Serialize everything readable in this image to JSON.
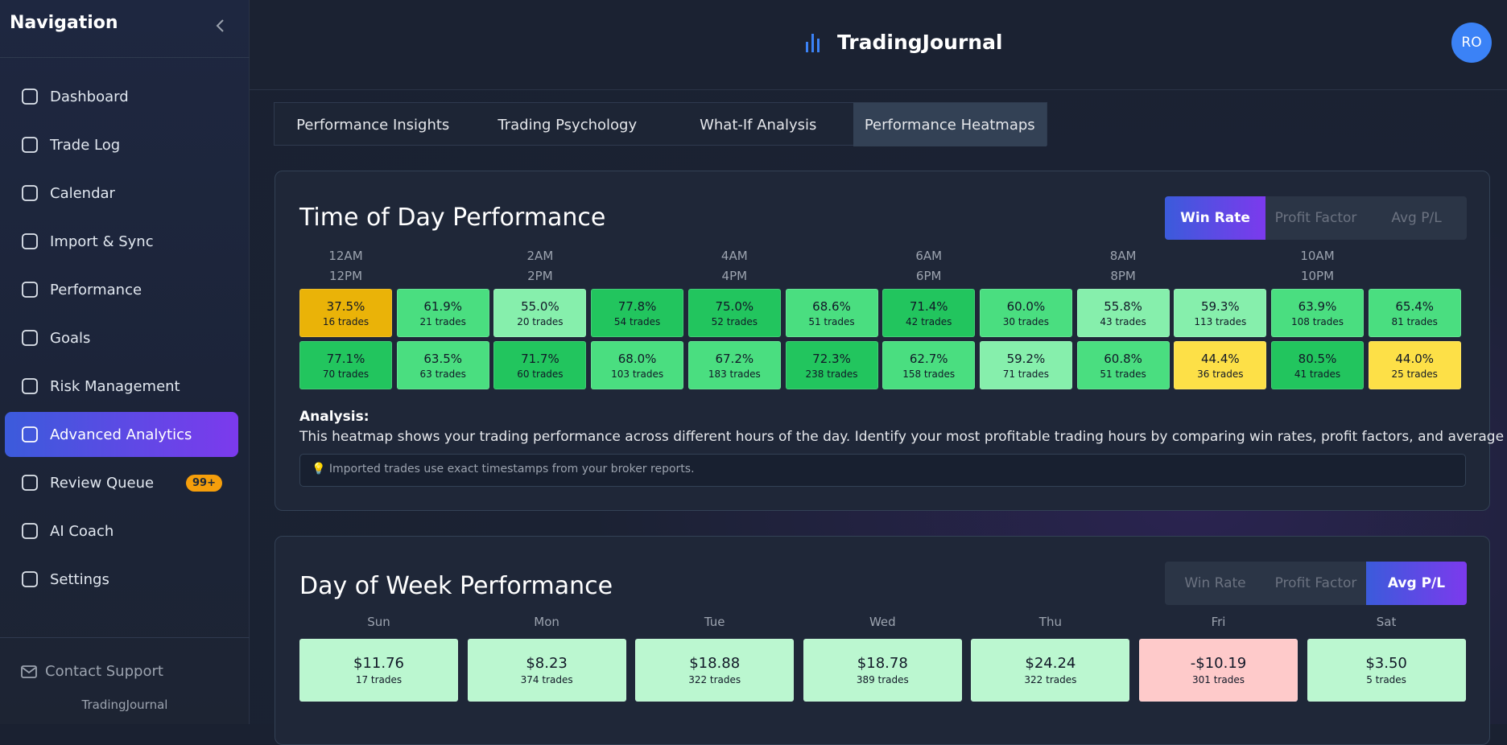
{
  "sidebar": {
    "title": "Navigation",
    "items": [
      {
        "label": "Dashboard"
      },
      {
        "label": "Trade Log"
      },
      {
        "label": "Calendar"
      },
      {
        "label": "Import & Sync"
      },
      {
        "label": "Performance"
      },
      {
        "label": "Goals"
      },
      {
        "label": "Risk Management"
      },
      {
        "label": "Advanced Analytics"
      },
      {
        "label": "Review Queue",
        "badge": "99+"
      },
      {
        "label": "AI Coach"
      },
      {
        "label": "Settings"
      }
    ],
    "active": 7,
    "contact": "Contact Support",
    "brand": "TradingJournal"
  },
  "header": {
    "brand": "TradingJournal",
    "avatar": "RO"
  },
  "tabs": {
    "items": [
      "Performance Insights",
      "Trading Psychology",
      "What-If Analysis",
      "Performance Heatmaps"
    ],
    "active": 3
  },
  "time_of_day": {
    "title": "Time of Day Performance",
    "toggles": [
      "Win Rate",
      "Profit Factor",
      "Avg P/L"
    ],
    "active_toggle": 0,
    "hour_labels": [
      {
        "am": "12AM",
        "pm": "12PM"
      },
      {
        "am": "2AM",
        "pm": "2PM"
      },
      {
        "am": "4AM",
        "pm": "4PM"
      },
      {
        "am": "6AM",
        "pm": "6PM"
      },
      {
        "am": "8AM",
        "pm": "8PM"
      },
      {
        "am": "10AM",
        "pm": "10PM"
      }
    ],
    "rows": [
      [
        {
          "value": "37.5%",
          "trades": "16 trades"
        },
        {
          "value": "61.9%",
          "trades": "21 trades"
        },
        {
          "value": "55.0%",
          "trades": "20 trades"
        },
        {
          "value": "77.8%",
          "trades": "54 trades"
        },
        {
          "value": "75.0%",
          "trades": "52 trades"
        },
        {
          "value": "68.6%",
          "trades": "51 trades"
        },
        {
          "value": "71.4%",
          "trades": "42 trades"
        },
        {
          "value": "60.0%",
          "trades": "30 trades"
        },
        {
          "value": "55.8%",
          "trades": "43 trades"
        },
        {
          "value": "59.3%",
          "trades": "113 trades"
        },
        {
          "value": "63.9%",
          "trades": "108 trades"
        },
        {
          "value": "65.4%",
          "trades": "81 trades"
        }
      ],
      [
        {
          "value": "77.1%",
          "trades": "70 trades"
        },
        {
          "value": "63.5%",
          "trades": "63 trades"
        },
        {
          "value": "71.7%",
          "trades": "60 trades"
        },
        {
          "value": "68.0%",
          "trades": "103 trades"
        },
        {
          "value": "67.2%",
          "trades": "183 trades"
        },
        {
          "value": "72.3%",
          "trades": "238 trades"
        },
        {
          "value": "62.7%",
          "trades": "158 trades"
        },
        {
          "value": "59.2%",
          "trades": "71 trades"
        },
        {
          "value": "60.8%",
          "trades": "51 trades"
        },
        {
          "value": "44.4%",
          "trades": "36 trades"
        },
        {
          "value": "80.5%",
          "trades": "41 trades"
        },
        {
          "value": "44.0%",
          "trades": "25 trades"
        }
      ]
    ],
    "analysis_label": "Analysis:",
    "analysis_text": "This heatmap shows your trading performance across different hours of the day. Identify your most profitable trading hours by comparing win rates, profit factors, and average P/L.",
    "tip": "💡 Imported trades use exact timestamps from your broker reports."
  },
  "day_of_week": {
    "title": "Day of Week Performance",
    "toggles": [
      "Win Rate",
      "Profit Factor",
      "Avg P/L"
    ],
    "active_toggle": 2,
    "days": [
      {
        "day": "Sun",
        "value": "$11.76",
        "trades": "17 trades"
      },
      {
        "day": "Mon",
        "value": "$8.23",
        "trades": "374 trades"
      },
      {
        "day": "Tue",
        "value": "$18.88",
        "trades": "322 trades"
      },
      {
        "day": "Wed",
        "value": "$18.78",
        "trades": "389 trades"
      },
      {
        "day": "Thu",
        "value": "$24.24",
        "trades": "322 trades"
      },
      {
        "day": "Fri",
        "value": "-$10.19",
        "trades": "301 trades"
      },
      {
        "day": "Sat",
        "value": "$3.50",
        "trades": "5 trades"
      }
    ]
  }
}
